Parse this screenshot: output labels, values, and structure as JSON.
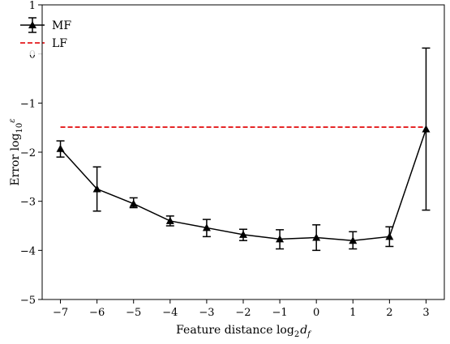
{
  "chart_data": {
    "type": "line",
    "xlabel": "Feature distance log",
    "xlabel_sub": "2",
    "xlabel_var": "d",
    "xlabel_var_sub": "f",
    "ylabel": "Error log",
    "ylabel_sub": "10",
    "ylabel_sup": "ε",
    "xlim": [
      -7.5,
      3.5
    ],
    "ylim": [
      -5,
      1
    ],
    "x_ticks": [
      -7,
      -6,
      -5,
      -4,
      -3,
      -2,
      -1,
      0,
      1,
      2,
      3
    ],
    "x_tick_labels": [
      "−7",
      "−6",
      "−5",
      "−4",
      "−3",
      "−2",
      "−1",
      "0",
      "1",
      "2",
      "3"
    ],
    "y_ticks": [
      -5,
      -4,
      -3,
      -2,
      -1,
      0,
      1
    ],
    "y_tick_labels": [
      "−5",
      "−4",
      "−3",
      "−2",
      "−1",
      "0",
      "1"
    ],
    "grid": false,
    "legend_position": "top-left",
    "series": [
      {
        "name": "MF",
        "color": "#000000",
        "marker": "triangle",
        "x": [
          -7,
          -6,
          -5,
          -4,
          -3,
          -2,
          -1,
          0,
          1,
          2,
          3
        ],
        "y": [
          -1.93,
          -2.75,
          -3.05,
          -3.4,
          -3.54,
          -3.68,
          -3.77,
          -3.74,
          -3.8,
          -3.72,
          -1.53
        ],
        "err_low": [
          -2.1,
          -3.2,
          -3.13,
          -3.5,
          -3.72,
          -3.8,
          -3.97,
          -4.0,
          -3.97,
          -3.92,
          -3.18
        ],
        "err_high": [
          -1.77,
          -2.3,
          -2.93,
          -3.3,
          -3.37,
          -3.57,
          -3.58,
          -3.48,
          -3.62,
          -3.52,
          0.12
        ]
      },
      {
        "name": "LF",
        "color": "#e41a1c",
        "style": "dashed",
        "x": [
          -7,
          3
        ],
        "y": [
          -1.49,
          -1.49
        ]
      }
    ]
  }
}
